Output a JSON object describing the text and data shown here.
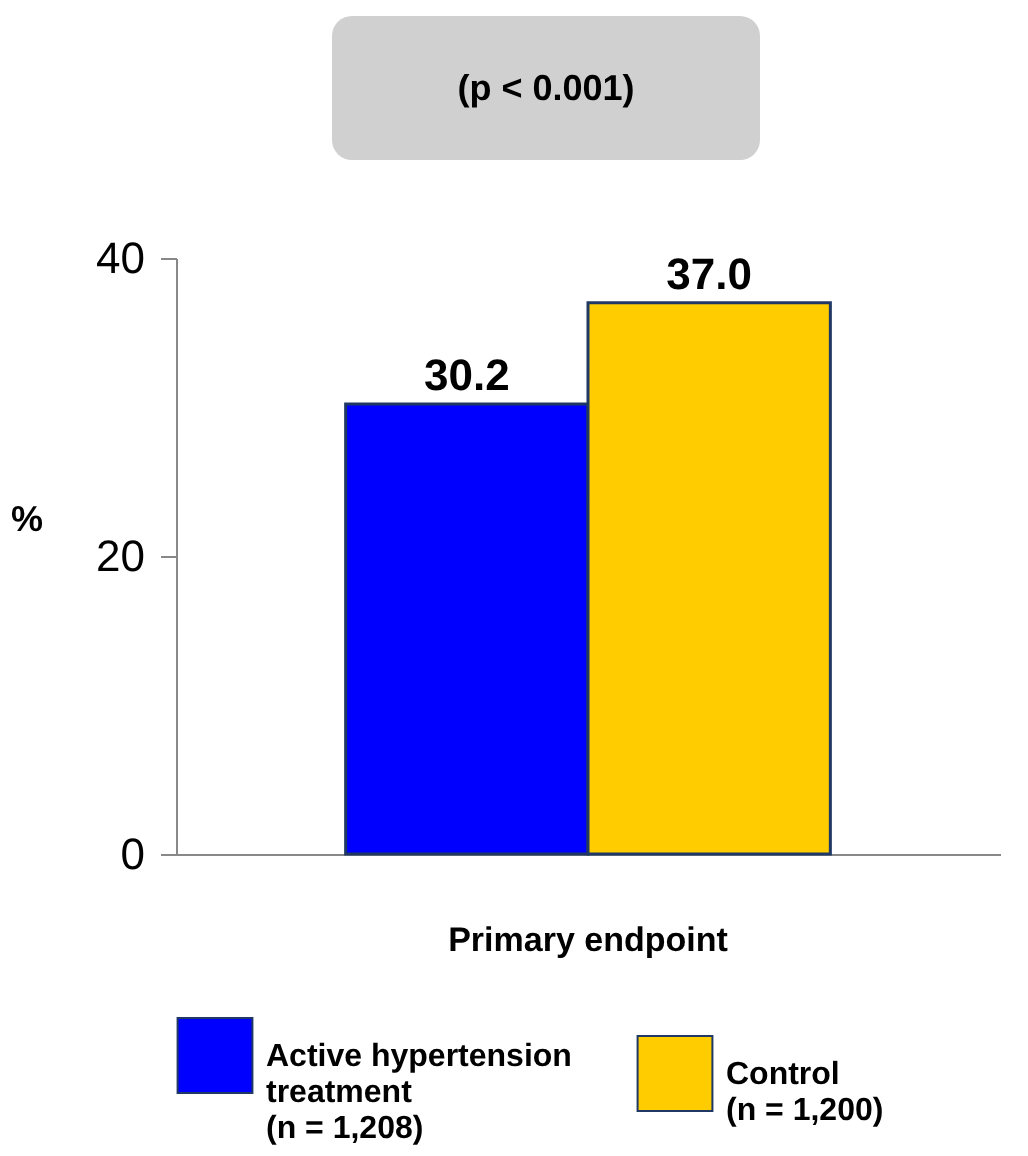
{
  "chart_data": {
    "type": "bar",
    "categories": [
      "Primary endpoint"
    ],
    "ylabel": "%",
    "ylim": [
      0,
      40
    ],
    "yticks": [
      0,
      20,
      40
    ],
    "grid": false,
    "legend": "bottom",
    "annotations": [
      "(p < 0.001)"
    ],
    "series": [
      {
        "name": "Active hypertension treatment (n = 1,208)",
        "color": "#0000ff",
        "values": [
          30.2
        ],
        "value_labels": [
          "30.2"
        ]
      },
      {
        "name": "Control (n = 1,200)",
        "color": "#ffcc00",
        "values": [
          37.0
        ],
        "value_labels": [
          "37.0"
        ]
      }
    ]
  }
}
